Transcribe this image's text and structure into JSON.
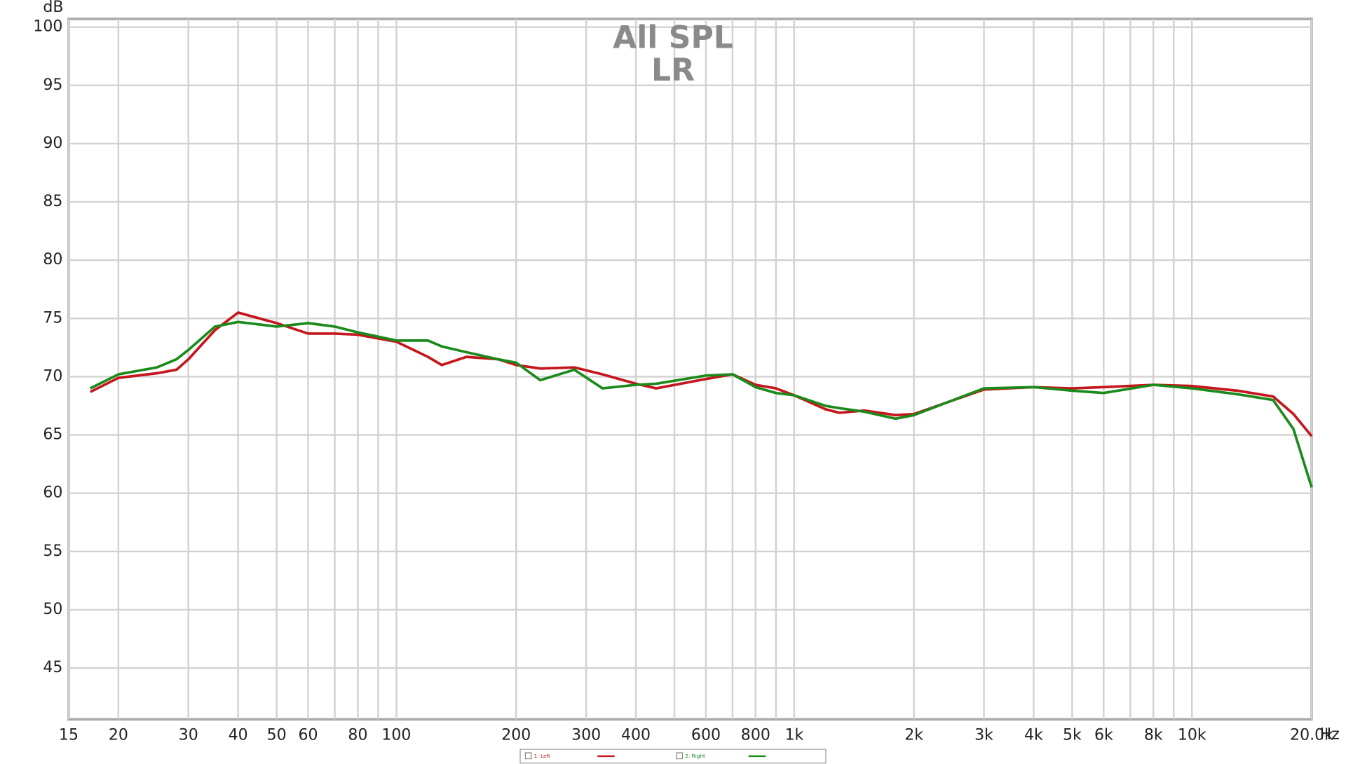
{
  "chart_data": {
    "type": "line",
    "title": "All SPL",
    "subtitle": "LR",
    "y_label": "dB",
    "x_label": "Hz",
    "log_x": true,
    "grid": true,
    "xlim": [
      15,
      20000
    ],
    "ylim": [
      40.6,
      100.7
    ],
    "yticks": [
      45,
      50,
      55,
      60,
      65,
      70,
      75,
      80,
      85,
      90,
      95,
      100
    ],
    "xticks": [
      15,
      20,
      30,
      40,
      50,
      60,
      80,
      100,
      200,
      300,
      400,
      600,
      800,
      {
        "value": 1000,
        "label": "1k"
      },
      {
        "value": 2000,
        "label": "2k"
      },
      {
        "value": 3000,
        "label": "3k"
      },
      {
        "value": 4000,
        "label": "4k"
      },
      {
        "value": 5000,
        "label": "5k"
      },
      {
        "value": 6000,
        "label": "6k"
      },
      {
        "value": 8000,
        "label": "8k"
      },
      {
        "value": 10000,
        "label": "10k"
      },
      {
        "value": 20000,
        "label": "20.0k"
      }
    ],
    "xgrid_minor": [
      70,
      90,
      500,
      700,
      900,
      7000,
      9000
    ],
    "x": [
      17,
      20,
      25,
      28,
      30,
      35,
      40,
      50,
      60,
      70,
      80,
      100,
      120,
      130,
      150,
      180,
      200,
      230,
      280,
      330,
      400,
      450,
      600,
      700,
      800,
      900,
      1000,
      1200,
      1300,
      1500,
      1800,
      2000,
      3000,
      4000,
      5000,
      6000,
      8000,
      10000,
      13000,
      16000,
      18000,
      20000
    ],
    "series": [
      {
        "name": "1: Left",
        "color": "#c4161c",
        "values": [
          68.7,
          69.9,
          70.3,
          70.6,
          71.5,
          74.0,
          75.5,
          74.6,
          73.7,
          73.7,
          73.6,
          73.0,
          71.7,
          71.0,
          71.7,
          71.5,
          71.0,
          70.7,
          70.8,
          70.2,
          69.4,
          69.0,
          69.8,
          70.2,
          69.3,
          69.0,
          68.4,
          67.2,
          66.9,
          67.1,
          66.7,
          66.8,
          68.9,
          69.1,
          69.0,
          69.1,
          69.3,
          69.2,
          68.8,
          68.3,
          66.8,
          64.9
        ]
      },
      {
        "name": "2: Right",
        "color": "#1a8a1a",
        "values": [
          69.0,
          70.2,
          70.8,
          71.5,
          72.3,
          74.3,
          74.7,
          74.3,
          74.6,
          74.3,
          73.8,
          73.1,
          73.1,
          72.6,
          72.1,
          71.5,
          71.2,
          69.7,
          70.6,
          69.0,
          69.3,
          69.4,
          70.1,
          70.2,
          69.1,
          68.6,
          68.4,
          67.5,
          67.3,
          67.0,
          66.4,
          66.7,
          69.0,
          69.1,
          68.8,
          68.6,
          69.3,
          69.0,
          68.5,
          68.0,
          65.5,
          60.5
        ]
      }
    ]
  }
}
